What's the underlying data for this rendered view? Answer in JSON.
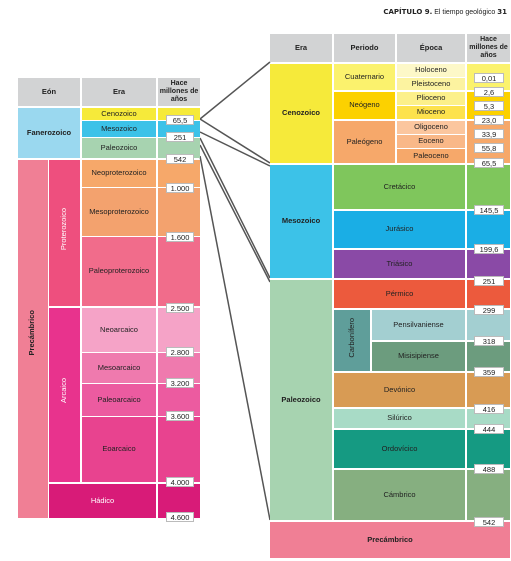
{
  "header": {
    "chapter": "CAPÍTULO 9.",
    "title": "El tiempo geológico",
    "page": "31"
  },
  "left_table": {
    "headers": {
      "eon": "Eón",
      "era": "Era",
      "age": "Hace millones de años"
    },
    "eons": {
      "fanerozoico": "Fanerozoico",
      "precambrico": "Precámbrico",
      "proterozoico": "Proterozoico",
      "arcaico": "Arcaico"
    },
    "eras": {
      "cenozoico": "Cenozoico",
      "mesozoico": "Mesozoico",
      "paleozoico": "Paleozoico",
      "neoproterozoico": "Neoproterozoico",
      "mesoproterozoico": "Mesoproterozoico",
      "paleoproterozoico": "Paleoproterozoico",
      "neoarcaico": "Neoarcaico",
      "mesoarcaico": "Mesoarcaico",
      "paleoarcaico": "Paleoarcaico",
      "eoarcaico": "Eoarcaico",
      "hadico": "Hádico"
    },
    "ages": [
      "65,5",
      "251",
      "542",
      "1.000",
      "1.600",
      "2.500",
      "2.800",
      "3.200",
      "3.600",
      "4.000",
      "4.600"
    ]
  },
  "right_table": {
    "headers": {
      "era": "Era",
      "periodo": "Periodo",
      "epoca": "Época",
      "age": "Hace millones de años"
    },
    "eras": {
      "cenozoico": "Cenozoico",
      "mesozoico": "Mesozoico",
      "paleozoico": "Paleozoico",
      "precambrico": "Precámbrico"
    },
    "periods": {
      "cuaternario": "Cuaternario",
      "neogeno": "Neógeno",
      "paleogeno": "Paleógeno",
      "cretacico": "Cretácico",
      "jurasico": "Jurásico",
      "triasico": "Triásico",
      "permico": "Pérmico",
      "carbonifero": "Carbonífero",
      "devonico": "Devónico",
      "silurico": "Silúrico",
      "ordovicico": "Ordovícico",
      "cambrico": "Cámbrico"
    },
    "epochs": {
      "holoceno": "Holoceno",
      "pleistoceno": "Pleistoceno",
      "plioceno": "Plioceno",
      "mioceno": "Mioceno",
      "oligoceno": "Oligoceno",
      "eoceno": "Eoceno",
      "paleoceno": "Paleoceno",
      "pensilvaniense": "Pensilvaniense",
      "misisipiense": "Misisipiense"
    },
    "ages": [
      "0,01",
      "2,6",
      "5,3",
      "23,0",
      "33,9",
      "55,8",
      "65,5",
      "145,5",
      "199,6",
      "251",
      "299",
      "318",
      "359",
      "416",
      "444",
      "488",
      "542"
    ]
  },
  "colors": {
    "cenozoico": "#f6ea3a",
    "mesozoico": "#3cc2e8",
    "paleozoico": "#a7d3b0",
    "fanerozoico": "#9ad8ef",
    "precambrico": "#f07f95",
    "proterozoico": "#ee4f7e",
    "arcaico": "#e8338d",
    "hadico": "#d81b78"
  }
}
